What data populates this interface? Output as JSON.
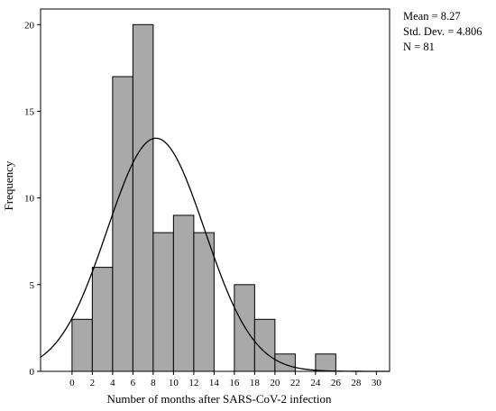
{
  "chart_data": {
    "type": "bar",
    "subtype": "histogram",
    "xlabel": "Number of months after SARS-CoV-2 infection",
    "ylabel": "Frequency",
    "bin_width": 2,
    "bins": [
      {
        "start": 0,
        "end": 2,
        "count": 3
      },
      {
        "start": 2,
        "end": 4,
        "count": 6
      },
      {
        "start": 4,
        "end": 6,
        "count": 17
      },
      {
        "start": 6,
        "end": 8,
        "count": 20
      },
      {
        "start": 8,
        "end": 10,
        "count": 8
      },
      {
        "start": 10,
        "end": 12,
        "count": 9
      },
      {
        "start": 12,
        "end": 14,
        "count": 8
      },
      {
        "start": 14,
        "end": 16,
        "count": 0
      },
      {
        "start": 16,
        "end": 18,
        "count": 5
      },
      {
        "start": 18,
        "end": 20,
        "count": 3
      },
      {
        "start": 20,
        "end": 22,
        "count": 1
      },
      {
        "start": 22,
        "end": 24,
        "count": 0
      },
      {
        "start": 24,
        "end": 26,
        "count": 1
      },
      {
        "start": 26,
        "end": 28,
        "count": 0
      },
      {
        "start": 28,
        "end": 30,
        "count": 0
      }
    ],
    "xticks": [
      0,
      2,
      4,
      6,
      8,
      10,
      12,
      14,
      16,
      18,
      20,
      22,
      24,
      26,
      28,
      30
    ],
    "yticks": [
      0,
      5,
      10,
      15,
      20
    ],
    "xlim": [
      -3.1,
      31.3
    ],
    "ylim": [
      0,
      20.9
    ],
    "normal_curve": {
      "mean": 8.27,
      "sd": 4.806,
      "n": 81
    },
    "bar_color": "#a9a9a9",
    "stats": {
      "mean_label": "Mean = 8.27",
      "sd_label": "Std. Dev. = 4.806",
      "n_label": "N = 81"
    }
  }
}
